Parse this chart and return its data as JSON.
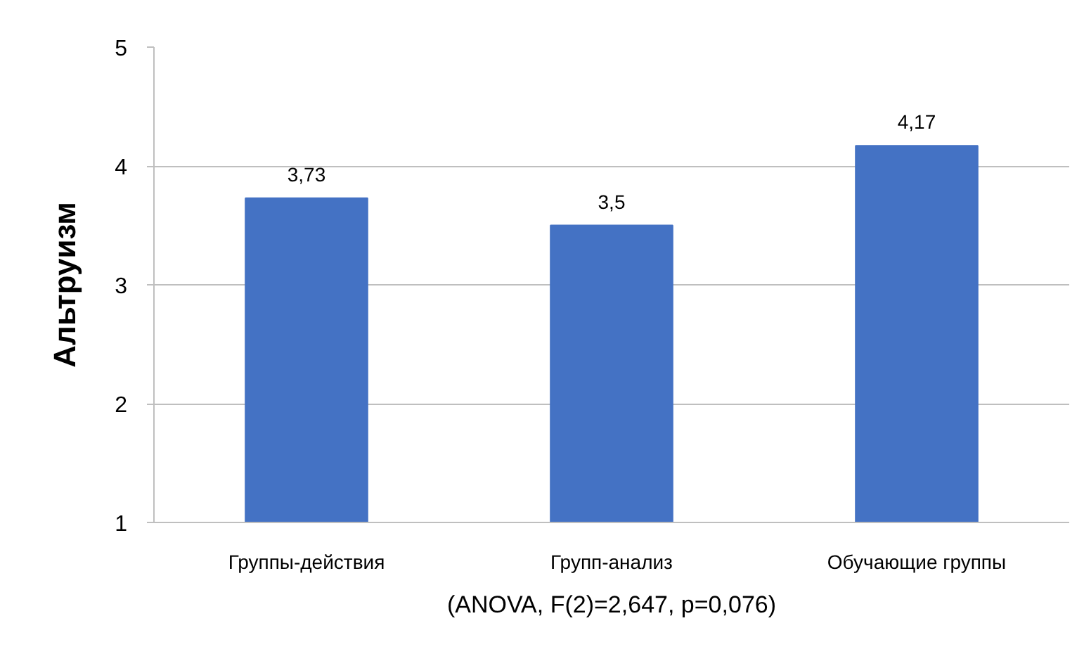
{
  "chart_data": {
    "type": "bar",
    "categories": [
      "Группы-действия",
      "Групп-анализ",
      "Обучающие группы"
    ],
    "values": [
      3.73,
      3.5,
      4.17
    ],
    "color": "#4472c4",
    "value_labels": [
      "3,73",
      "3,5",
      "4,17"
    ],
    "ylabel": "Альтруизм",
    "xlabel": "(ANOVA, F(2)=2,647, p=0,076)",
    "ylim": [
      1,
      5
    ],
    "yticks": [
      1,
      2,
      3,
      4,
      5
    ],
    "grid": "y"
  }
}
